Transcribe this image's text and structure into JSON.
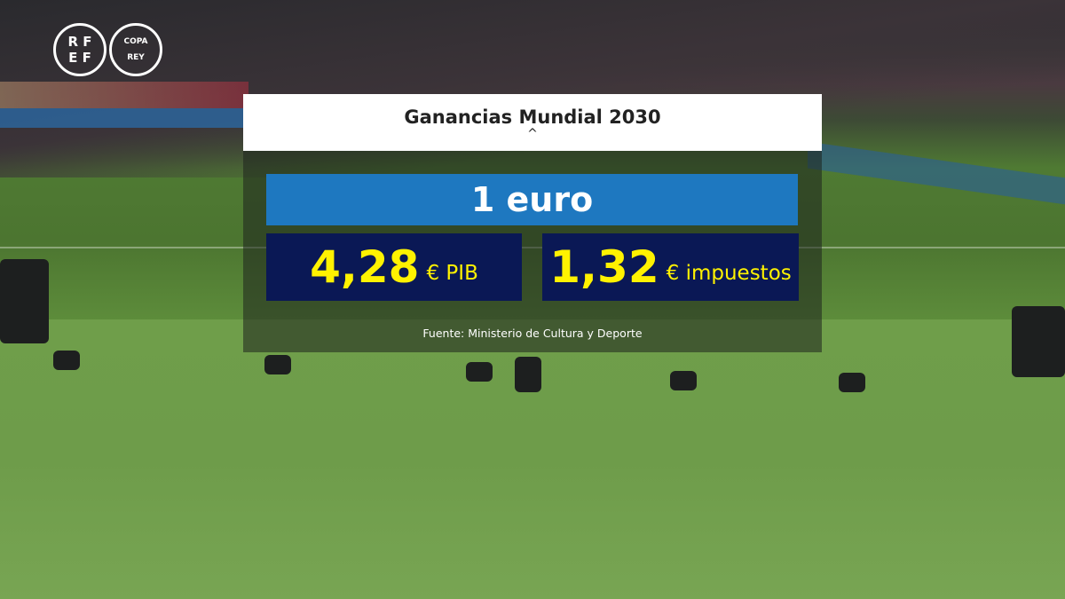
{
  "logos": {
    "federation": "RFEF",
    "cup": "COPA REY"
  },
  "graphic": {
    "title": "Ganancias Mundial 2030",
    "caret": "^",
    "base": "1 euro",
    "stats": [
      {
        "value": "4,28",
        "unit": "€ PIB"
      },
      {
        "value": "1,32",
        "unit": "€ impuestos"
      }
    ],
    "source": "Fuente: Ministerio de Cultura y Deporte"
  },
  "colors": {
    "header": "#ffffff",
    "base_bar": "#1e78c0",
    "stat_box": "#0a1855",
    "stat_text": "#fff200"
  }
}
